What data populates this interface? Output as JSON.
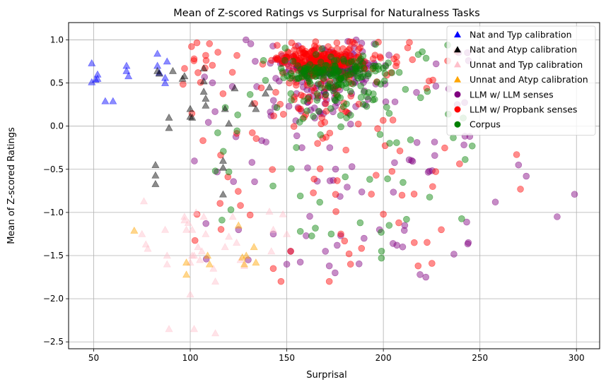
{
  "chart_data": {
    "type": "scatter",
    "title": "Mean of Z-scored Ratings vs Surprisal for Naturalness Tasks",
    "xlabel": "Surprisal",
    "ylabel": "Mean of Z-scored Ratings",
    "xlim": [
      37,
      312
    ],
    "ylim": [
      -2.58,
      1.2
    ],
    "xticks": [
      50,
      100,
      150,
      200,
      250,
      300
    ],
    "yticks": [
      -2.5,
      -2.0,
      -1.5,
      -1.0,
      -0.5,
      0.0,
      0.5,
      1.0
    ],
    "grid": true,
    "legend_position": "top-right",
    "series": [
      {
        "name": "Nat and Typ calibration",
        "marker": "triangle",
        "color": "#0000ff",
        "points": [
          [
            49,
            0.73
          ],
          [
            49,
            0.51
          ],
          [
            51,
            0.54
          ],
          [
            52,
            0.6
          ],
          [
            52,
            0.55
          ],
          [
            56,
            0.29
          ],
          [
            60,
            0.29
          ],
          [
            67,
            0.64
          ],
          [
            67,
            0.7
          ],
          [
            68,
            0.58
          ],
          [
            83,
            0.84
          ],
          [
            83,
            0.7
          ],
          [
            84,
            0.62
          ],
          [
            87,
            0.5
          ],
          [
            87,
            0.56
          ],
          [
            88,
            0.75
          ]
        ]
      },
      {
        "name": "Nat and Atyp calibration",
        "marker": "triangle",
        "color": "#000000",
        "points": [
          [
            82,
            -0.45
          ],
          [
            82,
            -0.57
          ],
          [
            82,
            -0.67
          ],
          [
            83,
            0.64
          ],
          [
            84,
            0.61
          ],
          [
            89,
            0.1
          ],
          [
            89,
            -0.02
          ],
          [
            91,
            0.64
          ],
          [
            96,
            0.55
          ],
          [
            97,
            0.58
          ],
          [
            100,
            0.2
          ],
          [
            100,
            0.11
          ],
          [
            101,
            0.1
          ],
          [
            107,
            0.52
          ],
          [
            107,
            0.67
          ],
          [
            107,
            0.4
          ],
          [
            108,
            0.32
          ],
          [
            108,
            0.24
          ],
          [
            117,
            -0.4
          ],
          [
            117,
            -0.48
          ],
          [
            117,
            -0.79
          ],
          [
            118,
            0.2
          ],
          [
            120,
            0.03
          ],
          [
            123,
            0.44
          ],
          [
            132,
            0.26
          ],
          [
            134,
            0.2
          ],
          [
            139,
            0.38
          ],
          [
            141,
            0.45
          ]
        ]
      },
      {
        "name": "Unnat and Typ calibration",
        "marker": "triangle",
        "color": "#ffc0cb",
        "points": [
          [
            75,
            -1.25
          ],
          [
            76,
            -0.87
          ],
          [
            77,
            -1.37
          ],
          [
            78,
            -1.42
          ],
          [
            87,
            -1.2
          ],
          [
            88,
            -1.5
          ],
          [
            88,
            -1.6
          ],
          [
            89,
            -2.35
          ],
          [
            97,
            -1.09
          ],
          [
            97,
            -1.05
          ],
          [
            98,
            -1.2
          ],
          [
            99,
            -1.12
          ],
          [
            100,
            -1.58
          ],
          [
            100,
            -1.95
          ],
          [
            101,
            -1.2
          ],
          [
            101,
            -1.5
          ],
          [
            102,
            -1.5
          ],
          [
            102,
            -2.35
          ],
          [
            103,
            -1.0
          ],
          [
            104,
            -1.4
          ],
          [
            105,
            -1.55
          ],
          [
            106,
            -1.45
          ],
          [
            107,
            -1.05
          ],
          [
            108,
            -1.25
          ],
          [
            112,
            -1.65
          ],
          [
            113,
            -2.4
          ],
          [
            113,
            -1.8
          ],
          [
            118,
            -1.4
          ],
          [
            120,
            -1.28
          ],
          [
            122,
            -1.05
          ],
          [
            124,
            -1.35
          ],
          [
            126,
            -1.55
          ],
          [
            128,
            -1.62
          ],
          [
            141,
            -0.99
          ],
          [
            142,
            -1.45
          ],
          [
            143,
            -1.2
          ],
          [
            148,
            -1.02
          ],
          [
            150,
            -1.25
          ]
        ]
      },
      {
        "name": "Unnat and Atyp calibration",
        "marker": "triangle",
        "color": "#ffa500",
        "points": [
          [
            71,
            -1.21
          ],
          [
            98,
            -1.58
          ],
          [
            98,
            -1.72
          ],
          [
            109,
            -1.5
          ],
          [
            110,
            -1.6
          ],
          [
            125,
            -1.15
          ],
          [
            127,
            -1.52
          ],
          [
            128,
            -1.6
          ],
          [
            129,
            -1.5
          ],
          [
            133,
            -1.4
          ],
          [
            134,
            -1.58
          ]
        ]
      },
      {
        "name": "LLM w/ LLM senses",
        "marker": "circle",
        "color": "#800080",
        "cluster": {
          "x_range": [
            100,
            245
          ],
          "y_range": [
            -1.75,
            1.0
          ],
          "center": [
            170,
            0.6
          ],
          "count": 320,
          "seed": 11
        },
        "points": [
          [
            299,
            -0.79
          ],
          [
            290,
            -1.05
          ],
          [
            274,
            -0.58
          ],
          [
            270,
            -0.45
          ],
          [
            258,
            -0.88
          ],
          [
            244,
            -1.35
          ],
          [
            222,
            -1.75
          ],
          [
            219,
            -1.72
          ],
          [
            210,
            -1.4
          ],
          [
            207,
            -1.38
          ],
          [
            205,
            -1.36
          ],
          [
            198,
            -1.2
          ],
          [
            190,
            -1.3
          ],
          [
            175,
            -1.7
          ],
          [
            172,
            -1.62
          ],
          [
            170,
            -1.45
          ],
          [
            160,
            -1.27
          ],
          [
            152,
            -1.45
          ],
          [
            150,
            -1.6
          ],
          [
            143,
            -1.25
          ],
          [
            130,
            -1.55
          ],
          [
            125,
            -1.2
          ]
        ]
      },
      {
        "name": "LLM w/ Propbank senses",
        "marker": "circle",
        "color": "#ff0000",
        "cluster": {
          "x_range": [
            95,
            240
          ],
          "y_range": [
            -1.8,
            1.0
          ],
          "center": [
            168,
            0.7
          ],
          "count": 340,
          "seed": 23
        },
        "points": [
          [
            269,
            -0.33
          ],
          [
            271,
            -0.73
          ],
          [
            230,
            -1.2
          ],
          [
            218,
            -1.62
          ],
          [
            216,
            -1.35
          ],
          [
            208,
            -1.12
          ],
          [
            200,
            -1.02
          ],
          [
            183,
            -1.6
          ],
          [
            178,
            -1.25
          ],
          [
            172,
            -1.8
          ],
          [
            152,
            -1.45
          ],
          [
            147,
            -1.8
          ],
          [
            143,
            -1.65
          ],
          [
            131,
            -1.03
          ],
          [
            126,
            -0.92
          ],
          [
            108,
            0.82
          ],
          [
            104,
            0.62
          ],
          [
            102,
            0.78
          ]
        ]
      },
      {
        "name": "Corpus",
        "marker": "circle",
        "color": "#008000",
        "cluster": {
          "x_range": [
            112,
            245
          ],
          "y_range": [
            -1.55,
            0.95
          ],
          "center": [
            175,
            0.55
          ],
          "count": 230,
          "seed": 37
        },
        "points": [
          [
            246,
            -0.23
          ],
          [
            212,
            -1.08
          ],
          [
            203,
            -1.15
          ],
          [
            199,
            -1.53
          ],
          [
            188,
            -1.12
          ],
          [
            173,
            -1.25
          ],
          [
            157,
            -1.22
          ],
          [
            120,
            -0.53
          ],
          [
            113,
            -0.52
          ]
        ]
      }
    ]
  }
}
